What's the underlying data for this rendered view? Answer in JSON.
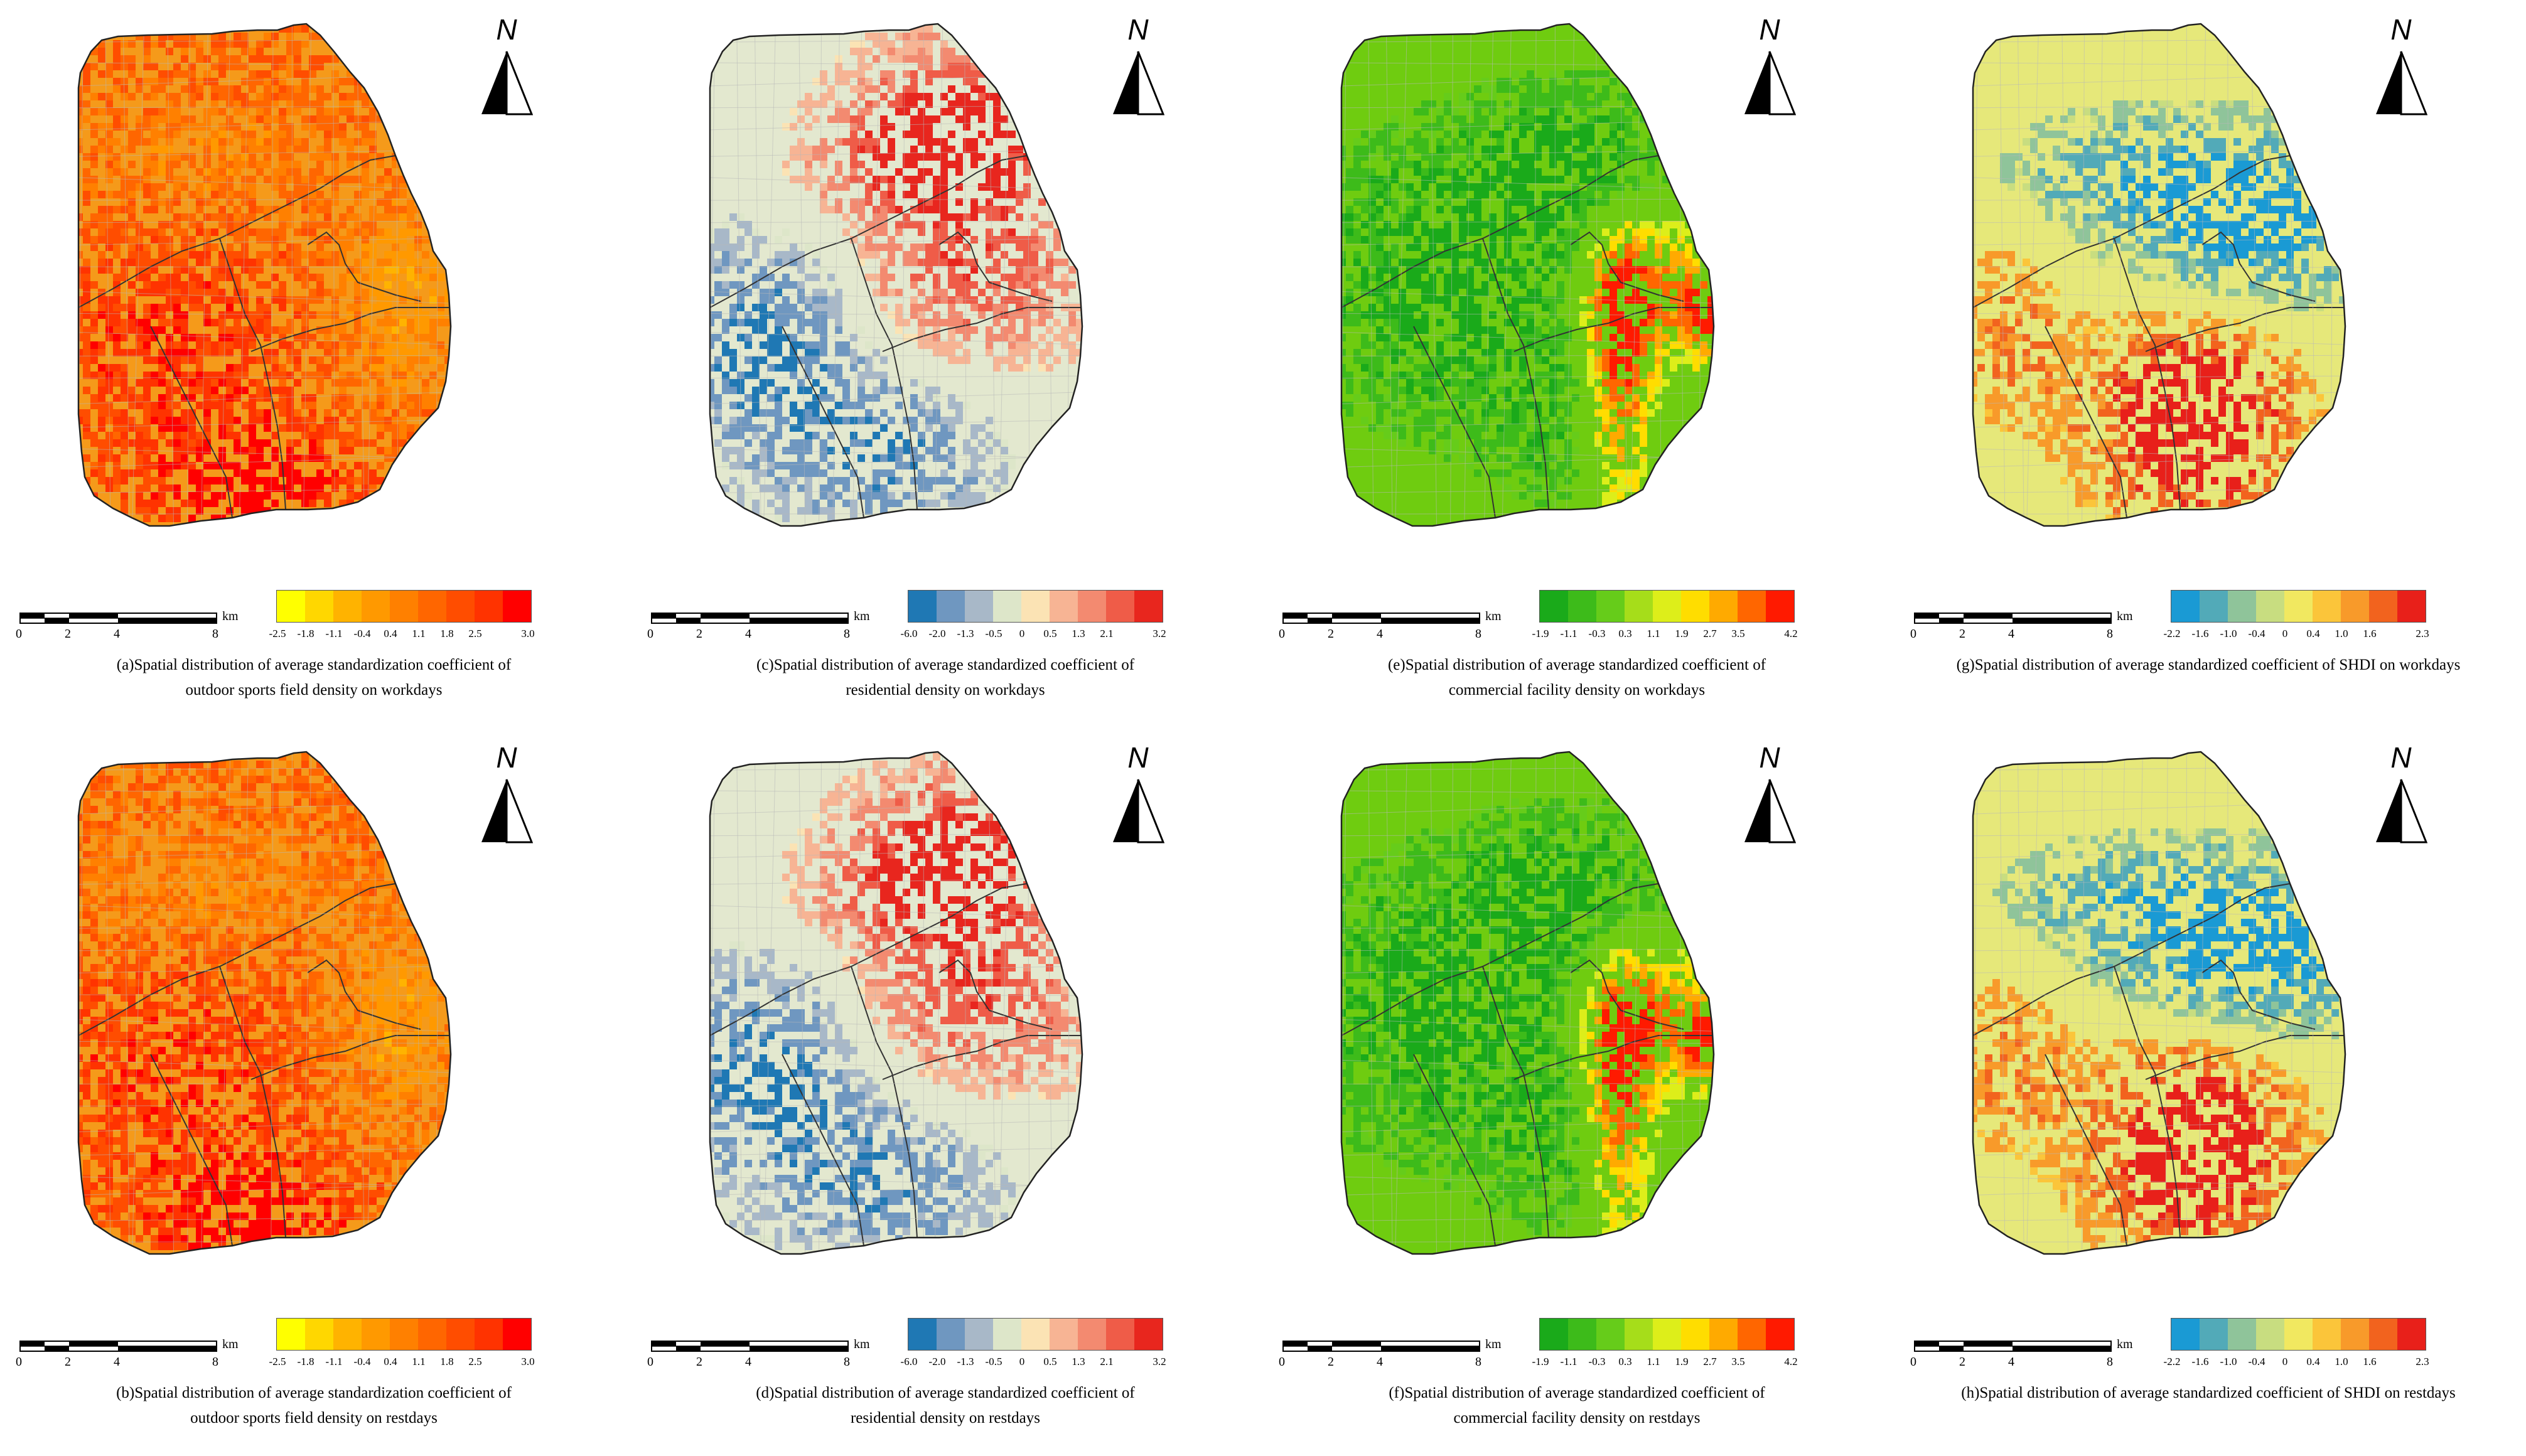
{
  "north_label": "N",
  "scale": {
    "ticks": [
      "0",
      "2",
      "4",
      "8"
    ],
    "unit": "km"
  },
  "colors": {
    "boundary": "#222222",
    "district_line": "#333333",
    "road": "#b8b8b8"
  },
  "panels": [
    {
      "id": "a",
      "theme": "sports",
      "caption_line1": "(a)Spatial distribution of average standardization coefficient of",
      "caption_line2": "outdoor sports field density on workdays",
      "legend_ticks": [
        "-2.5",
        "-1.8",
        "-1.1",
        "-0.4",
        "0.4",
        "1.1",
        "1.8",
        "2.5",
        "3.0"
      ],
      "legend_colors": [
        "#ffff00",
        "#ffd700",
        "#ffb300",
        "#ff9900",
        "#ff8000",
        "#ff6600",
        "#ff4d00",
        "#ff3300",
        "#ff0000"
      ],
      "base_color": "#f59a1a"
    },
    {
      "id": "c",
      "theme": "residential",
      "caption_line1": "(c)Spatial distribution of average standardized coefficient of",
      "caption_line2": "residential density on workdays",
      "legend_ticks": [
        "-6.0",
        "-2.0",
        "-1.3",
        "-0.5",
        "0",
        "0.5",
        "1.3",
        "2.1",
        "3.2"
      ],
      "legend_colors": [
        "#1f78b4",
        "#6f97c0",
        "#a8b8c8",
        "#dde6c9",
        "#fbe3b4",
        "#f7b494",
        "#f38a70",
        "#ef5c48",
        "#e8261e"
      ],
      "base_color": "#e3e8cf"
    },
    {
      "id": "e",
      "theme": "commercial",
      "caption_line1": "(e)Spatial distribution of average standardized coefficient of",
      "caption_line2": "commercial facility density on workdays",
      "legend_ticks": [
        "-1.9",
        "-1.1",
        "-0.3",
        "0.3",
        "1.1",
        "1.9",
        "2.7",
        "3.5",
        "4.2"
      ],
      "legend_colors": [
        "#1aaa1a",
        "#3dbb1a",
        "#66cc1a",
        "#a6dd1a",
        "#ddee1a",
        "#ffdd00",
        "#ffaa00",
        "#ff6600",
        "#ff1a00"
      ],
      "base_color": "#6fcc10"
    },
    {
      "id": "g",
      "theme": "shdi",
      "caption_line1": "(g)Spatial distribution of average standardized coefficient of  SHDI on workdays",
      "caption_line2": "",
      "legend_ticks": [
        "-2.2",
        "-1.6",
        "-1.0",
        "-0.4",
        "0",
        "0.4",
        "1.0",
        "1.6",
        "2.3"
      ],
      "legend_colors": [
        "#1a9ad4",
        "#52aab8",
        "#8fc49a",
        "#c8dd80",
        "#f1e860",
        "#fbc53a",
        "#f89a2a",
        "#f2631e",
        "#e8201a"
      ],
      "base_color": "#e6e87a"
    },
    {
      "id": "b",
      "theme": "sports",
      "caption_line1": "(b)Spatial distribution of average standardization coefficient of",
      "caption_line2": "outdoor sports field density on restdays",
      "legend_ticks": [
        "-2.5",
        "-1.8",
        "-1.1",
        "-0.4",
        "0.4",
        "1.1",
        "1.8",
        "2.5",
        "3.0"
      ],
      "legend_colors": [
        "#ffff00",
        "#ffd700",
        "#ffb300",
        "#ff9900",
        "#ff8000",
        "#ff6600",
        "#ff4d00",
        "#ff3300",
        "#ff0000"
      ],
      "base_color": "#f59a1a"
    },
    {
      "id": "d",
      "theme": "residential",
      "caption_line1": "(d)Spatial distribution of average standardized coefficient of",
      "caption_line2": "residential density on restdays",
      "legend_ticks": [
        "-6.0",
        "-2.0",
        "-1.3",
        "-0.5",
        "0",
        "0.5",
        "1.3",
        "2.1",
        "3.2"
      ],
      "legend_colors": [
        "#1f78b4",
        "#6f97c0",
        "#a8b8c8",
        "#dde6c9",
        "#fbe3b4",
        "#f7b494",
        "#f38a70",
        "#ef5c48",
        "#e8261e"
      ],
      "base_color": "#e3e8cf"
    },
    {
      "id": "f",
      "theme": "commercial",
      "caption_line1": "(f)Spatial distribution of average standardized coefficient of",
      "caption_line2": "commercial facility density on restdays",
      "legend_ticks": [
        "-1.9",
        "-1.1",
        "-0.3",
        "0.3",
        "1.1",
        "1.9",
        "2.7",
        "3.5",
        "4.2"
      ],
      "legend_colors": [
        "#1aaa1a",
        "#3dbb1a",
        "#66cc1a",
        "#a6dd1a",
        "#ddee1a",
        "#ffdd00",
        "#ffaa00",
        "#ff6600",
        "#ff1a00"
      ],
      "base_color": "#6fcc10"
    },
    {
      "id": "h",
      "theme": "shdi",
      "caption_line1": "(h)Spatial distribution of average standardized coefficient of  SHDI on restdays",
      "caption_line2": "",
      "legend_ticks": [
        "-2.2",
        "-1.6",
        "-1.0",
        "-0.4",
        "0",
        "0.4",
        "1.0",
        "1.6",
        "2.3"
      ],
      "legend_colors": [
        "#1a9ad4",
        "#52aab8",
        "#8fc49a",
        "#c8dd80",
        "#f1e860",
        "#fbc53a",
        "#f89a2a",
        "#f2631e",
        "#e8201a"
      ],
      "base_color": "#e6e87a"
    }
  ]
}
